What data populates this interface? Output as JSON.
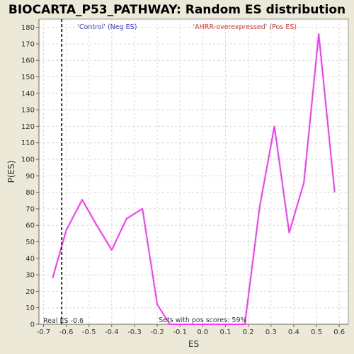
{
  "chart_data": {
    "type": "line",
    "title": "BIOCARTA_P53_PATHWAY: Random ES distribution",
    "xlabel": "ES",
    "ylabel": "P(ES)",
    "xlim": [
      -0.72,
      0.64
    ],
    "ylim": [
      0,
      185
    ],
    "x_ticks": [
      -0.7,
      -0.6,
      -0.5,
      -0.4,
      -0.3,
      -0.2,
      -0.1,
      0.0,
      0.1,
      0.2,
      0.3,
      0.4,
      0.5,
      0.6
    ],
    "x_tick_labels": [
      "-0.7",
      "-0.6",
      "-0.5",
      "-0.4",
      "-0.3",
      "-0.2",
      "-0.1",
      "0.0",
      "0.1",
      "0.2",
      "0.3",
      "0.4",
      "0.5",
      "0.6"
    ],
    "y_ticks": [
      0,
      10,
      20,
      30,
      40,
      50,
      60,
      70,
      80,
      90,
      100,
      110,
      120,
      130,
      140,
      150,
      160,
      170,
      180
    ],
    "grid": true,
    "legend": [
      {
        "label": "'Control' (Neg ES)",
        "color": "#3b3bd6"
      },
      {
        "label": "'AHRR-overexpressed' (Pos ES)",
        "color": "#d63b3b"
      }
    ],
    "series": [
      {
        "color": "#ff33ff",
        "x": [
          -0.66,
          -0.6,
          -0.53,
          -0.47,
          -0.4,
          -0.335,
          -0.265,
          -0.2,
          -0.145,
          -0.1,
          0.0,
          0.1,
          0.185,
          0.25,
          0.315,
          0.38,
          0.445,
          0.51,
          0.58
        ],
        "y": [
          28,
          57,
          75.5,
          61,
          45,
          64,
          70,
          12,
          0,
          0,
          0,
          0,
          0,
          71,
          120,
          55.5,
          86,
          176,
          80
        ]
      }
    ],
    "real_es": {
      "x": -0.62,
      "label": "Real ES -0.6"
    },
    "annotation": "Sets with pos scores: 59%"
  },
  "colors": {
    "background": "#ece9d8",
    "plot_background": "#ffffff",
    "line": "#ff33ff",
    "real_es_line": "#333333"
  }
}
